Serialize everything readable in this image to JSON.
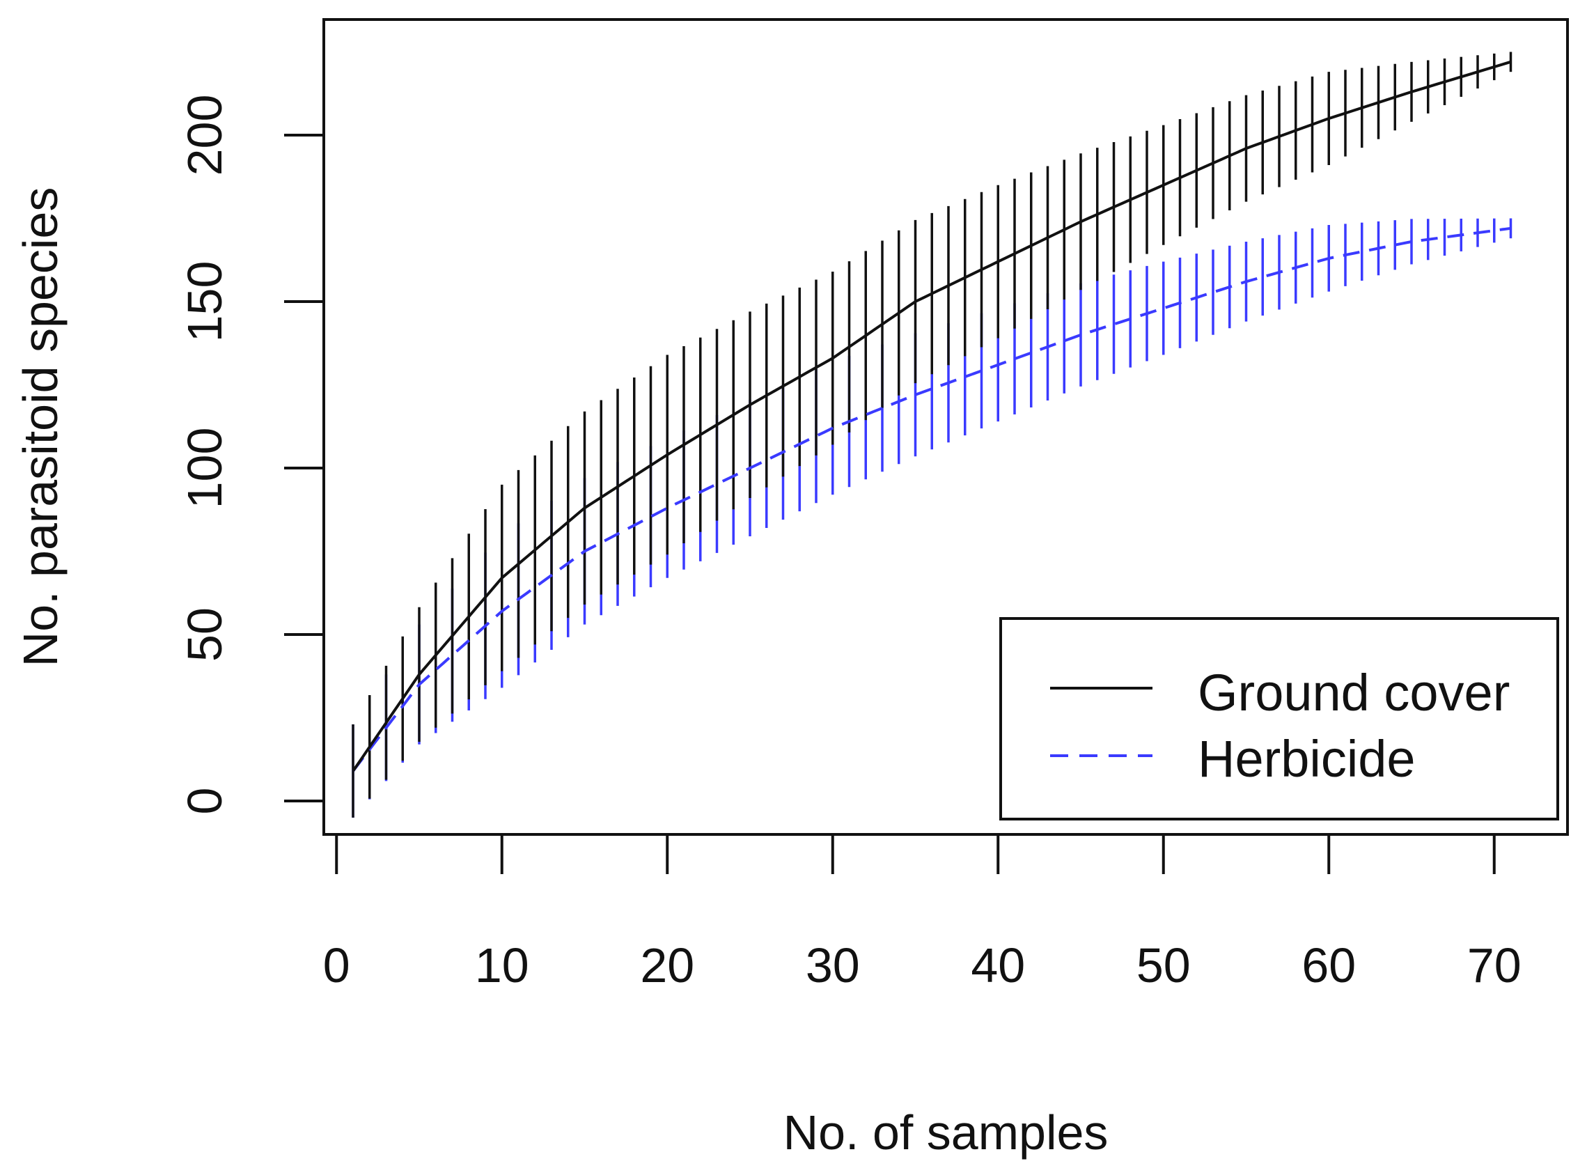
{
  "chart_data": {
    "type": "line",
    "title": "",
    "xlabel": "No. of samples",
    "ylabel": "No. parasitoid species",
    "xlim": [
      0,
      71
    ],
    "ylim": [
      -10,
      230
    ],
    "x_ticks": [
      0,
      10,
      20,
      30,
      40,
      50,
      60,
      70
    ],
    "y_ticks": [
      0,
      50,
      100,
      150,
      200
    ],
    "grid": false,
    "legend_position": "bottom-right",
    "series": [
      {
        "name": "Ground cover",
        "color": "#111111",
        "dash": "solid",
        "points": [
          [
            1,
            9
          ],
          [
            5,
            38
          ],
          [
            10,
            67
          ],
          [
            15,
            88
          ],
          [
            20,
            104
          ],
          [
            25,
            119
          ],
          [
            30,
            133
          ],
          [
            35,
            150
          ],
          [
            40,
            162
          ],
          [
            45,
            174
          ],
          [
            50,
            185
          ],
          [
            55,
            196
          ],
          [
            60,
            205
          ],
          [
            65,
            213
          ],
          [
            71,
            222
          ]
        ],
        "error_half_width": [
          [
            1,
            14
          ],
          [
            10,
            28
          ],
          [
            20,
            30
          ],
          [
            30,
            26
          ],
          [
            40,
            23
          ],
          [
            50,
            18
          ],
          [
            60,
            14
          ],
          [
            71,
            3
          ]
        ]
      },
      {
        "name": "Herbicide",
        "color": "#3a3aff",
        "dash": "dashed",
        "points": [
          [
            1,
            9
          ],
          [
            5,
            35
          ],
          [
            10,
            57
          ],
          [
            15,
            75
          ],
          [
            20,
            88
          ],
          [
            25,
            100
          ],
          [
            30,
            112
          ],
          [
            35,
            122
          ],
          [
            40,
            131
          ],
          [
            45,
            140
          ],
          [
            50,
            148
          ],
          [
            55,
            156
          ],
          [
            60,
            163
          ],
          [
            65,
            168
          ],
          [
            71,
            172
          ]
        ],
        "error_half_width": [
          [
            1,
            14
          ],
          [
            10,
            23
          ],
          [
            20,
            21
          ],
          [
            30,
            20
          ],
          [
            40,
            17
          ],
          [
            50,
            14
          ],
          [
            60,
            10
          ],
          [
            71,
            3
          ]
        ]
      }
    ]
  }
}
